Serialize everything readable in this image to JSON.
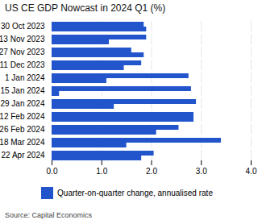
{
  "chart_data": {
    "type": "bar",
    "orientation": "horizontal",
    "title": "US CE GDP Nowcast in 2024 Q1 (%)",
    "source": "Source: Capital Economics",
    "categories": [
      "30 Oct 2023",
      "13 Nov 2023",
      "27 Nov 2023",
      "11 Dec 2023",
      "1 Jan 2024",
      "15 Jan 2024",
      "29 Jan 2024",
      "12 Feb 2024",
      "26 Feb 2024",
      "18 Mar 2024",
      "22 Apr 2024"
    ],
    "series": [
      {
        "name": "Quarter-on-quarter change, annualised rate",
        "color": "#2255CC",
        "values": [
          1.85,
          1.9,
          1.6,
          1.8,
          2.75,
          2.8,
          2.9,
          2.85,
          2.55,
          3.4,
          2.05
        ]
      },
      {
        "name": "Quarter-on-quarter change, annualised rate",
        "color": "#2255CC",
        "values": [
          1.9,
          1.15,
          1.85,
          1.45,
          1.1,
          0.15,
          1.25,
          2.85,
          2.1,
          1.5,
          1.8
        ]
      }
    ],
    "xlim": [
      0,
      4
    ],
    "xticks": [
      0,
      1,
      2,
      3,
      4
    ],
    "grid": true,
    "legend": "bottom"
  }
}
